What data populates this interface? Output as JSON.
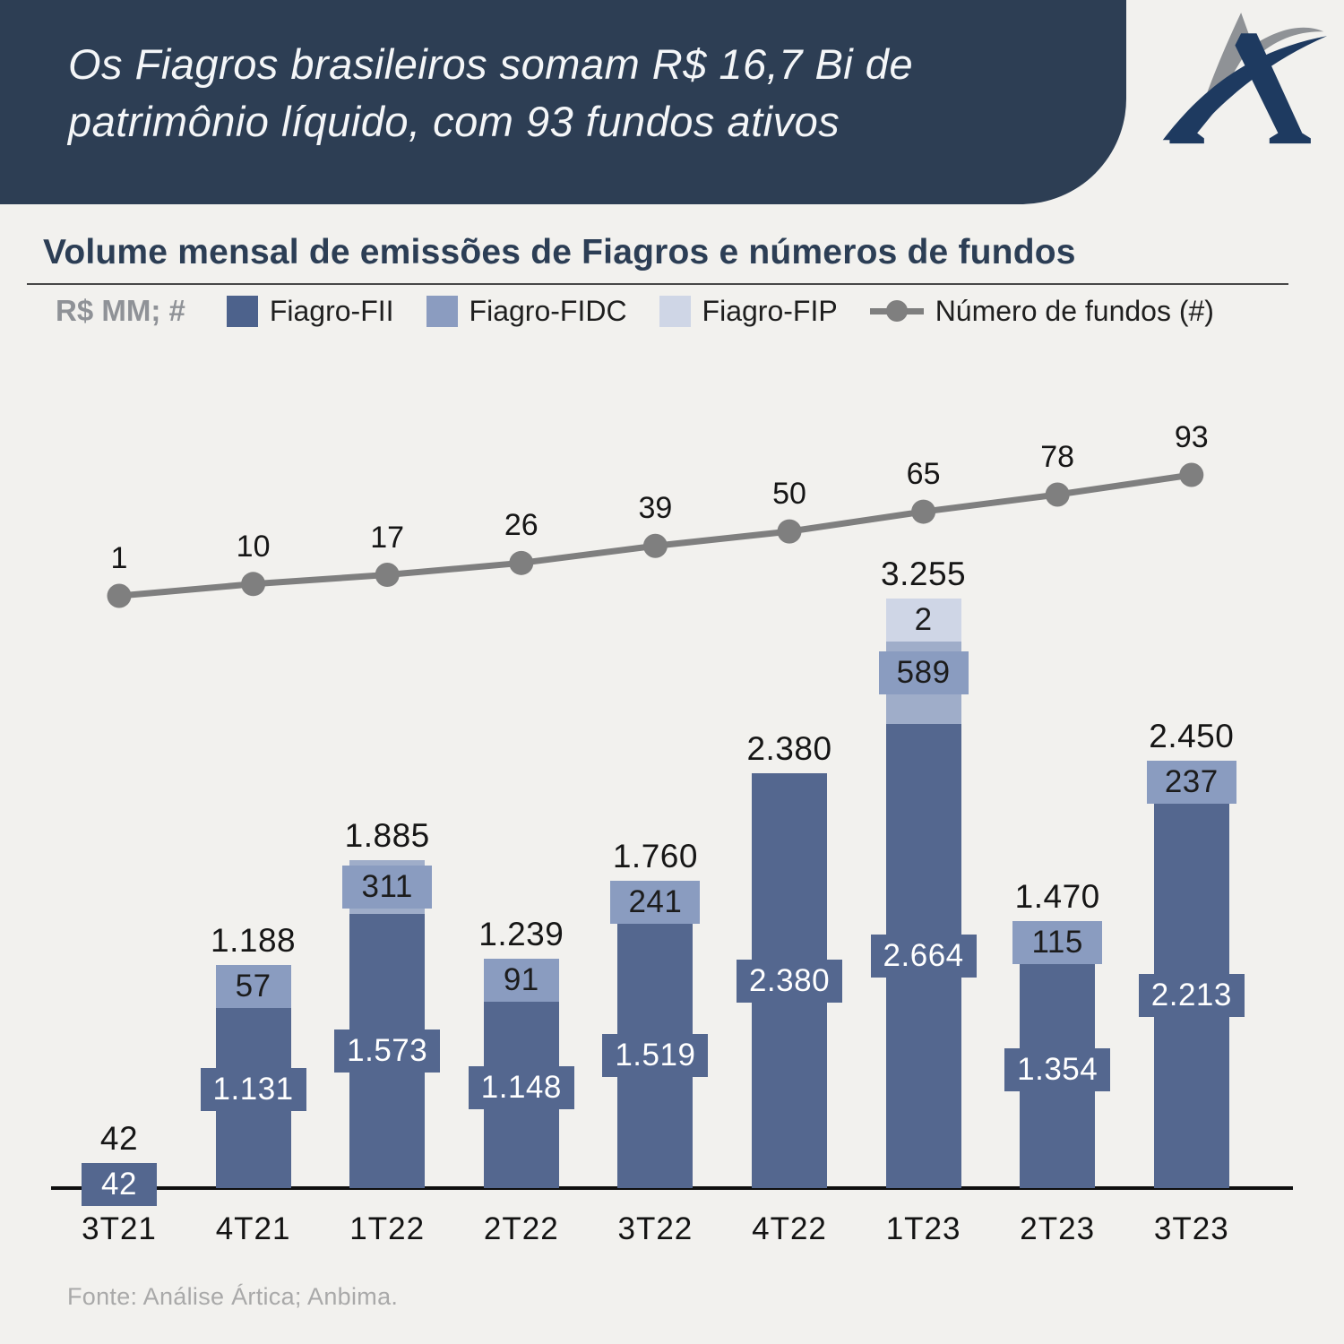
{
  "page": {
    "bg": "#f2f1ee"
  },
  "header": {
    "bg": "#2d3e54",
    "title_lines": [
      "Os Fiagros brasileiros somam R$ 16,7 Bi de",
      "patrimônio líquido, com 93 fundos ativos"
    ]
  },
  "logo": {
    "name": "artica-logo",
    "navy": "#1e3a60",
    "gray": "#8f9296"
  },
  "section": {
    "title": "Volume mensal de emissões de Fiagros e números de fundos",
    "unit_label": "R$ MM; #"
  },
  "legend": {
    "items": [
      {
        "label": "Fiagro-FII",
        "type": "square",
        "color": "#4d628c"
      },
      {
        "label": "Fiagro-FIDC",
        "type": "square",
        "color": "#8b9cc0"
      },
      {
        "label": "Fiagro-FIP",
        "type": "square",
        "color": "#cfd6e6"
      },
      {
        "label": "Número de fundos (#)",
        "type": "line-dot",
        "color": "#7f7f7f"
      }
    ]
  },
  "chart_data": {
    "type": "bar",
    "subtype": "stacked-bars-with-line",
    "title": "Volume mensal de emissões de Fiagros e números de fundos",
    "ylabel": "R$ MM; #",
    "xlabel": "",
    "categories": [
      "3T21",
      "4T21",
      "1T22",
      "2T22",
      "3T22",
      "4T22",
      "1T23",
      "2T23",
      "3T23"
    ],
    "series": [
      {
        "name": "Fiagro-FII",
        "color": "#54678f",
        "badge_color": "#54678f",
        "label_color": "#ffffff",
        "values": [
          42,
          1131,
          1573,
          1148,
          1519,
          2380,
          2664,
          1354,
          2213
        ],
        "labels": [
          "42",
          "1.131",
          "1.573",
          "1.148",
          "1.519",
          "2.380",
          "2.664",
          "1.354",
          "2.213"
        ]
      },
      {
        "name": "Fiagro-FIDC",
        "color": "#9fadc9",
        "badge_color": "#8a9cc0",
        "label_color": "#1c1c1c",
        "values": [
          0,
          57,
          311,
          91,
          241,
          0,
          589,
          115,
          237
        ],
        "labels": [
          "",
          "57",
          "311",
          "91",
          "241",
          "",
          "589",
          "115",
          "237"
        ]
      },
      {
        "name": "Fiagro-FIP",
        "color": "#cfd6e6",
        "badge_color": "#cfd6e6",
        "label_color": "#1c1c1c",
        "values": [
          0,
          0,
          0,
          0,
          0,
          0,
          2,
          0,
          0
        ],
        "labels": [
          "",
          "",
          "",
          "",
          "",
          "",
          "2",
          "",
          ""
        ]
      }
    ],
    "totals": {
      "values": [
        42,
        1188,
        1885,
        1239,
        1760,
        2380,
        3255,
        1470,
        2450
      ],
      "labels": [
        "42",
        "1.188",
        "1.885",
        "1.239",
        "1.760",
        "2.380",
        "3.255",
        "1.470",
        "2.450"
      ]
    },
    "line": {
      "name": "Número de fundos (#)",
      "color": "#7f7f7f",
      "values": [
        1,
        10,
        17,
        26,
        39,
        50,
        65,
        78,
        93
      ]
    },
    "legend_position": "top",
    "grid": false
  },
  "footer": {
    "source": "Fonte: Análise Ártica; Anbima."
  }
}
